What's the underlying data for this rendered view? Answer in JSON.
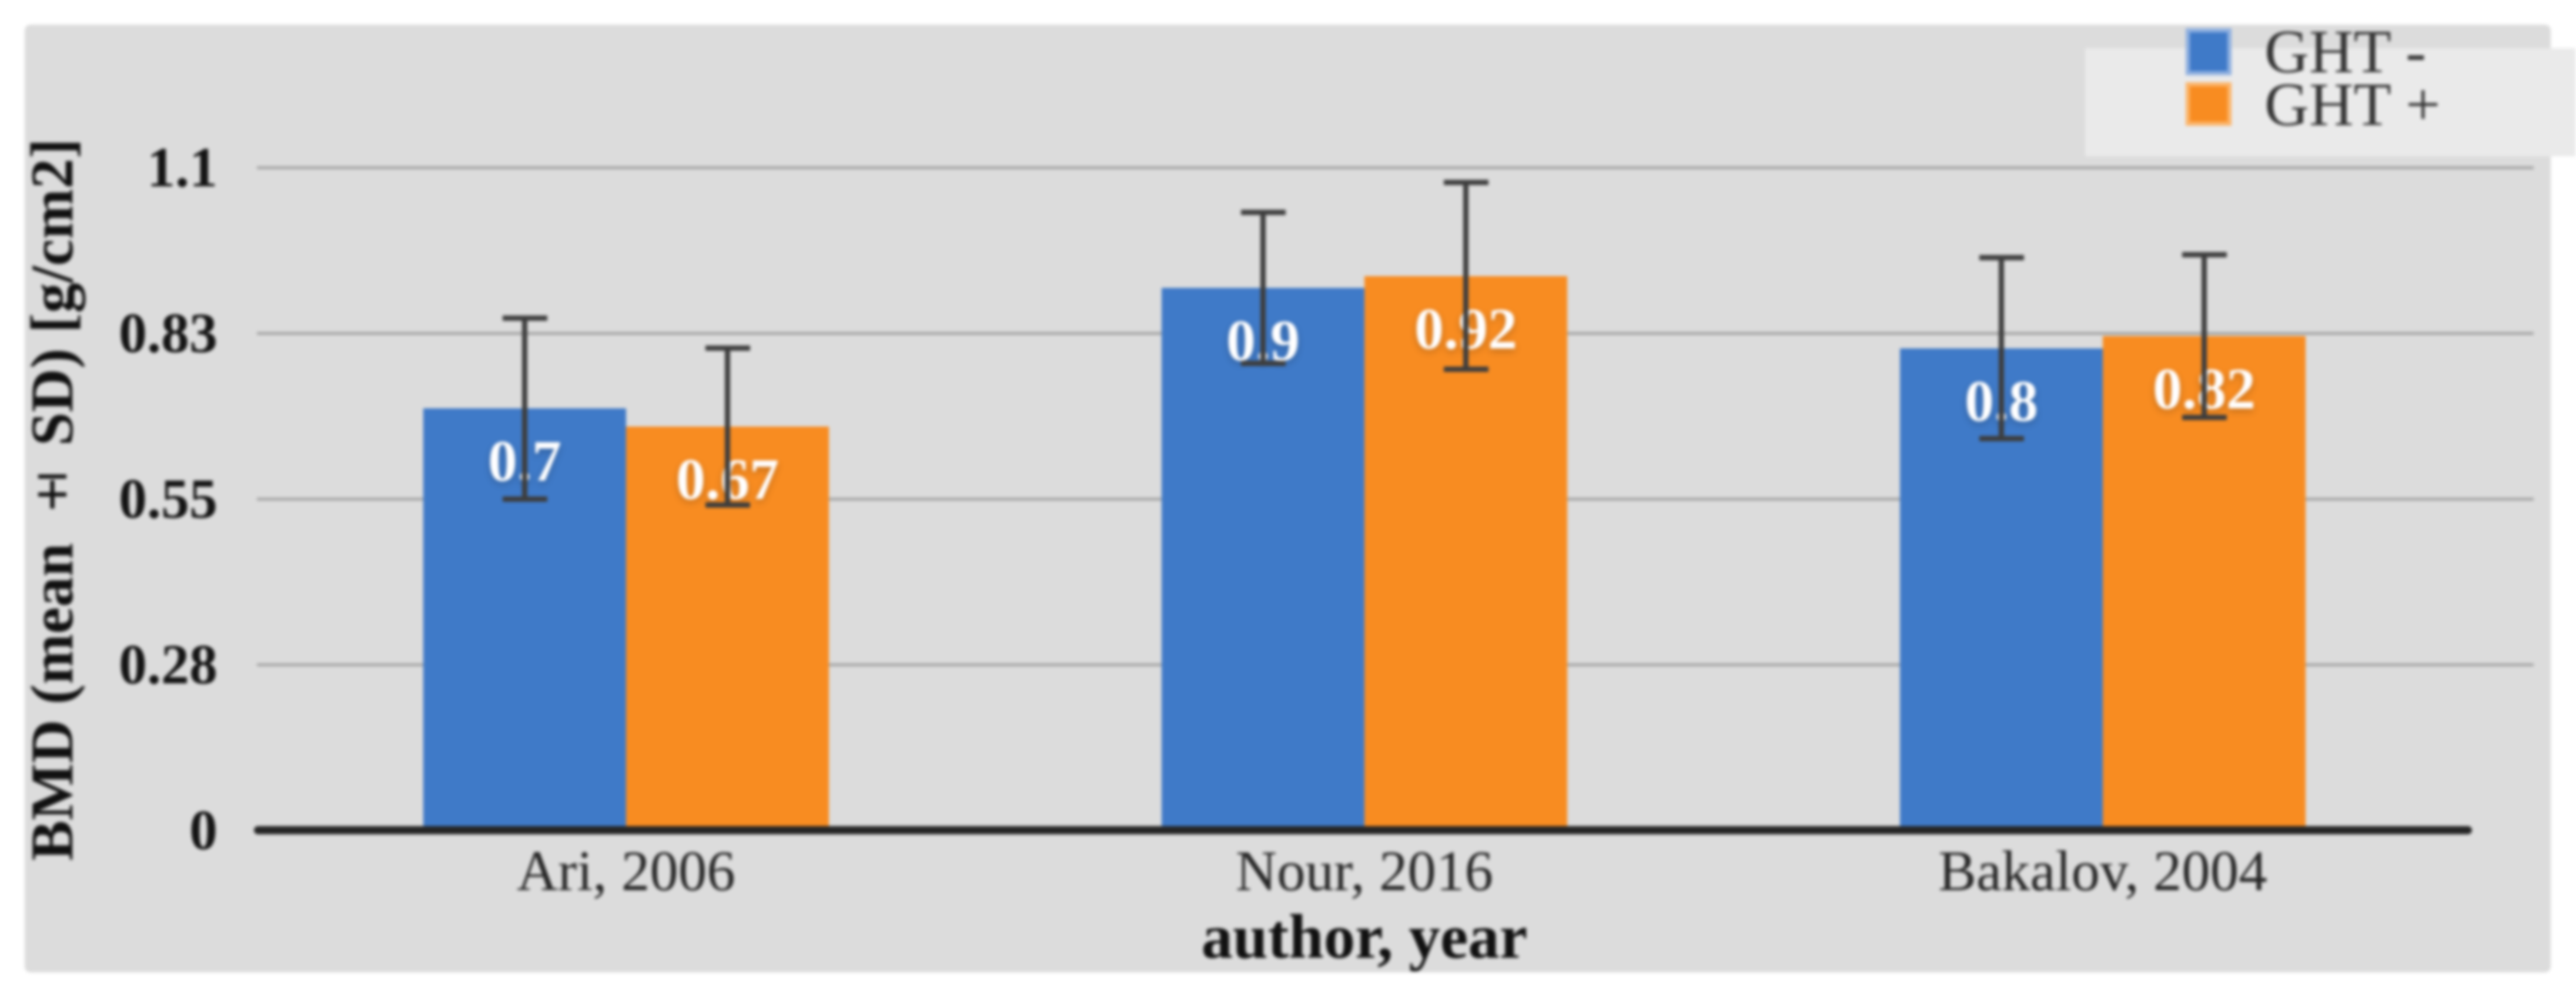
{
  "chart_data": {
    "type": "bar",
    "title": "",
    "categories": [
      "Ari, 2006",
      "Nour, 2016",
      "Bakalov, 2004"
    ],
    "series": [
      {
        "name": "GHT -",
        "color": "#3f7ac8",
        "swatch_border": "#8fb0e0",
        "values": [
          0.7,
          0.9,
          0.8
        ],
        "value_labels": [
          "0.7",
          "0.9",
          "0.8"
        ],
        "sd": [
          0.15,
          0.125,
          0.15
        ]
      },
      {
        "name": "GHT +",
        "color": "#f88c21",
        "swatch_border": "#fcb469",
        "values": [
          0.67,
          0.92,
          0.82
        ],
        "value_labels": [
          "0.67",
          "0.92",
          "0.82"
        ],
        "sd": [
          0.13,
          0.155,
          0.135
        ]
      }
    ],
    "xlabel": "author, year",
    "ylabel": "BMD (mean ± SD) [g/cm2]",
    "ylim": [
      0,
      1.1
    ],
    "y_ticks": [
      {
        "value": 1.1,
        "label": "1.1"
      },
      {
        "value": 0.825,
        "label": "0.83"
      },
      {
        "value": 0.55,
        "label": "0.55"
      },
      {
        "value": 0.275,
        "label": "0.28"
      },
      {
        "value": 0,
        "label": "0"
      }
    ],
    "grid": true,
    "error_bars": true,
    "legend_position": "top-right"
  },
  "colors": {
    "page_bg": "#ffffff",
    "panel_bg": "#dcdcdc",
    "legend_bg": "#eaeaea",
    "gridline": "#a6a6a6",
    "axis_line": "#262626",
    "error_bar": "#3d3d3d",
    "data_label": "#ffffff",
    "text": "#141414"
  }
}
